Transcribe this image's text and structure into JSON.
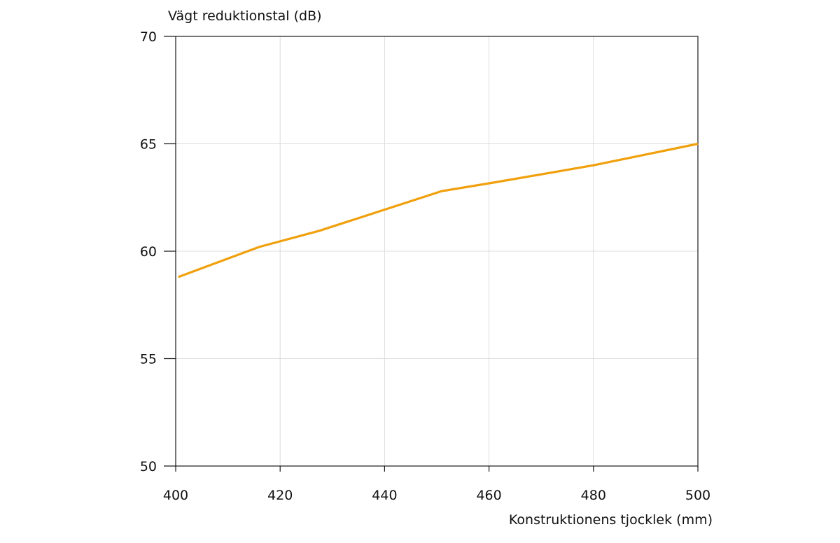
{
  "chart_data": {
    "type": "line",
    "title": "",
    "xlabel": "Konstruktionens tjocklek (mm)",
    "ylabel": "Vägt reduktionstal (dB)",
    "xlim": [
      400,
      500
    ],
    "ylim": [
      50,
      70
    ],
    "xticks": [
      "400",
      "420",
      "440",
      "460",
      "480",
      "500"
    ],
    "yticks": [
      "50",
      "55",
      "60",
      "65",
      "70"
    ],
    "grid": true,
    "series": [
      {
        "color": "#f0a00c",
        "x": [
          400.5,
          416,
          427.5,
          451,
          461,
          480,
          500
        ],
        "y": [
          58.8,
          60.2,
          60.95,
          62.8,
          63.2,
          64,
          65
        ]
      }
    ]
  }
}
